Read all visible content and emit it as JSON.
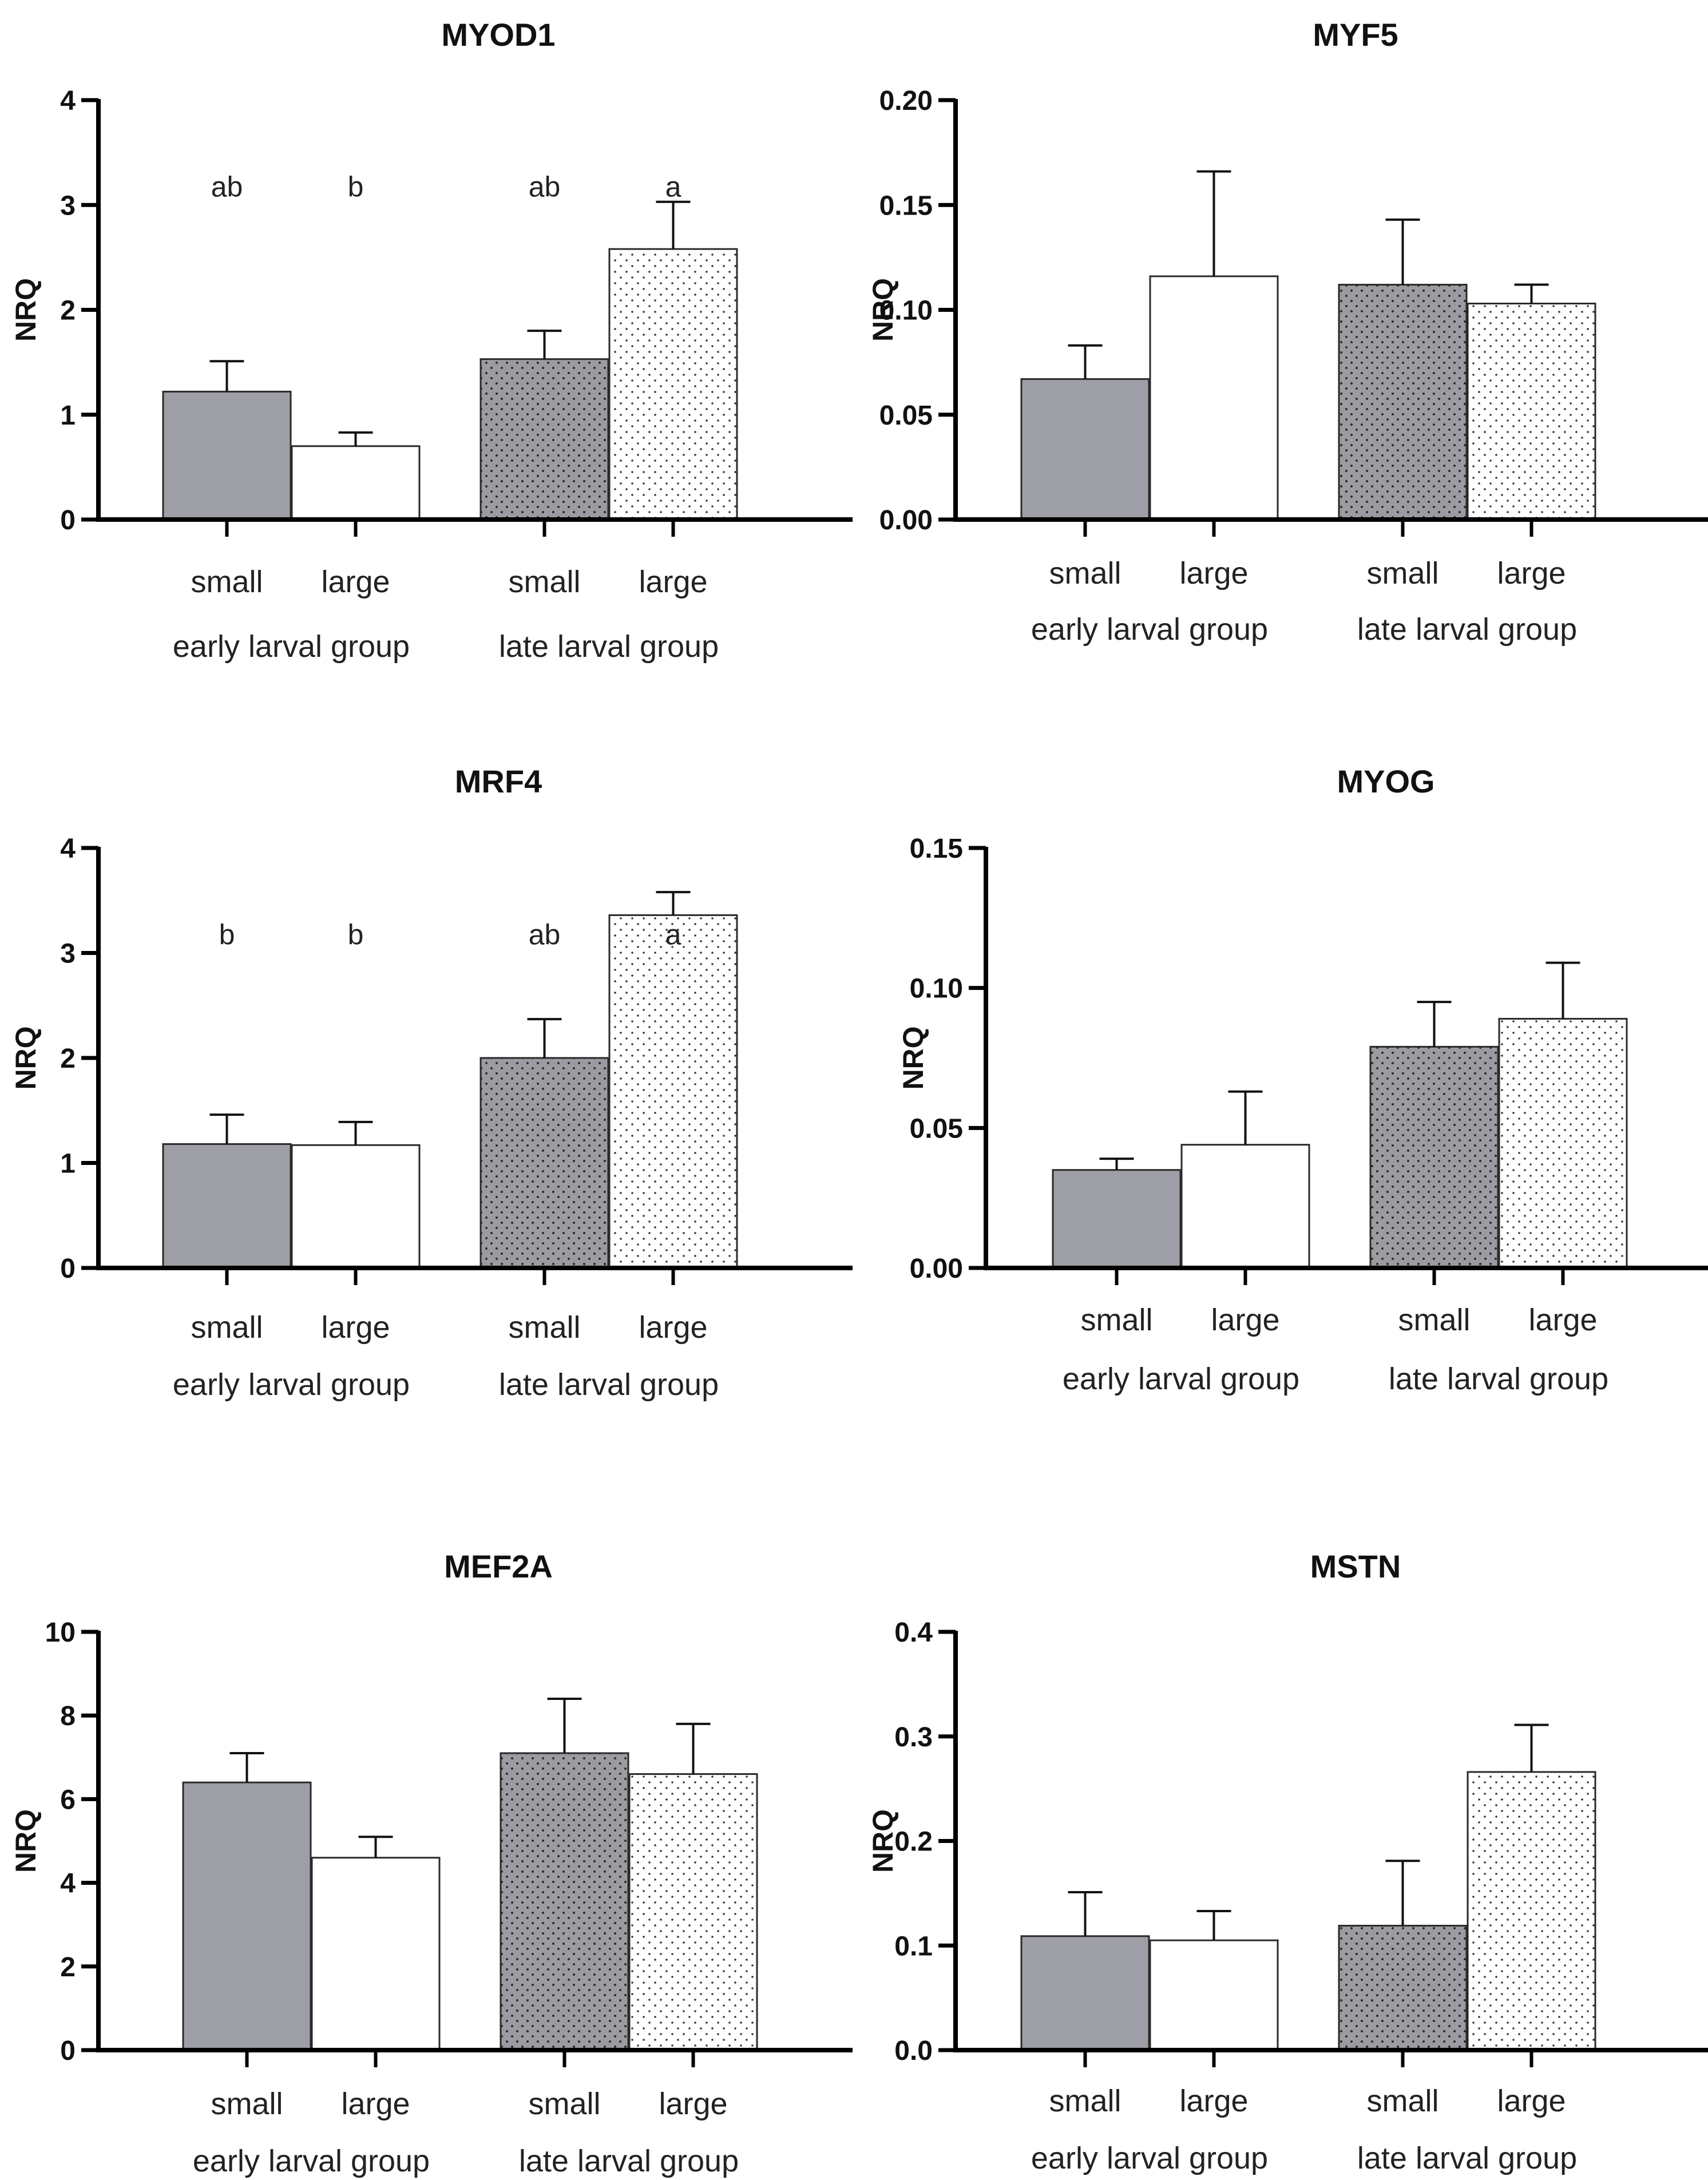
{
  "figure": {
    "y_axis_label": "NRQ"
  },
  "chart_data": [
    {
      "type": "bar",
      "title": "MYOD1",
      "ylabel": "NRQ",
      "ylim": [
        0,
        4
      ],
      "ticks": [
        "0",
        "1",
        "2",
        "3",
        "4"
      ],
      "categories": [
        "small",
        "large",
        "small",
        "large"
      ],
      "groups": [
        "early larval group",
        "late larval group"
      ],
      "values": [
        1.22,
        0.7,
        1.53,
        2.58
      ],
      "errors": [
        0.29,
        0.13,
        0.27,
        0.45
      ],
      "letters": [
        "ab",
        "b",
        "ab",
        "a"
      ]
    },
    {
      "type": "bar",
      "title": "MYF5",
      "ylabel": "NRQ",
      "ylim": [
        0,
        0.2
      ],
      "ticks": [
        "0.00",
        "0.05",
        "0.10",
        "0.15",
        "0.20"
      ],
      "categories": [
        "small",
        "large",
        "small",
        "large"
      ],
      "groups": [
        "early larval group",
        "late larval group"
      ],
      "values": [
        0.067,
        0.116,
        0.112,
        0.103
      ],
      "errors": [
        0.016,
        0.05,
        0.031,
        0.009
      ],
      "letters": []
    },
    {
      "type": "bar",
      "title": "MRF4",
      "ylabel": "NRQ",
      "ylim": [
        0,
        4
      ],
      "ticks": [
        "0",
        "1",
        "2",
        "3",
        "4"
      ],
      "categories": [
        "small",
        "large",
        "small",
        "large"
      ],
      "groups": [
        "early larval group",
        "late larval group"
      ],
      "values": [
        1.18,
        1.17,
        2.0,
        3.36
      ],
      "errors": [
        0.28,
        0.22,
        0.37,
        0.22
      ],
      "letters": [
        "b",
        "b",
        "ab",
        "a"
      ]
    },
    {
      "type": "bar",
      "title": "MYOG",
      "ylabel": "NRQ",
      "ylim": [
        0,
        0.15
      ],
      "ticks": [
        "0.00",
        "0.05",
        "0.10",
        "0.15"
      ],
      "categories": [
        "small",
        "large",
        "small",
        "large"
      ],
      "groups": [
        "early larval group",
        "late larval group"
      ],
      "values": [
        0.035,
        0.044,
        0.079,
        0.089
      ],
      "errors": [
        0.004,
        0.019,
        0.016,
        0.02
      ],
      "letters": []
    },
    {
      "type": "bar",
      "title": "MEF2A",
      "ylabel": "NRQ",
      "ylim": [
        0,
        10
      ],
      "ticks": [
        "0",
        "2",
        "4",
        "6",
        "8",
        "10"
      ],
      "categories": [
        "small",
        "large",
        "small",
        "large"
      ],
      "groups": [
        "early larval group",
        "late larval group"
      ],
      "values": [
        6.4,
        4.6,
        7.1,
        6.6
      ],
      "errors": [
        0.7,
        0.5,
        1.3,
        1.2
      ],
      "letters": []
    },
    {
      "type": "bar",
      "title": "MSTN",
      "ylabel": "NRQ",
      "ylim": [
        0,
        0.4
      ],
      "ticks": [
        "0.0",
        "0.1",
        "0.2",
        "0.3",
        "0.4"
      ],
      "categories": [
        "small",
        "large",
        "small",
        "large"
      ],
      "groups": [
        "early larval group",
        "late larval group"
      ],
      "values": [
        0.109,
        0.105,
        0.119,
        0.266
      ],
      "errors": [
        0.042,
        0.028,
        0.062,
        0.045
      ],
      "letters": []
    }
  ]
}
